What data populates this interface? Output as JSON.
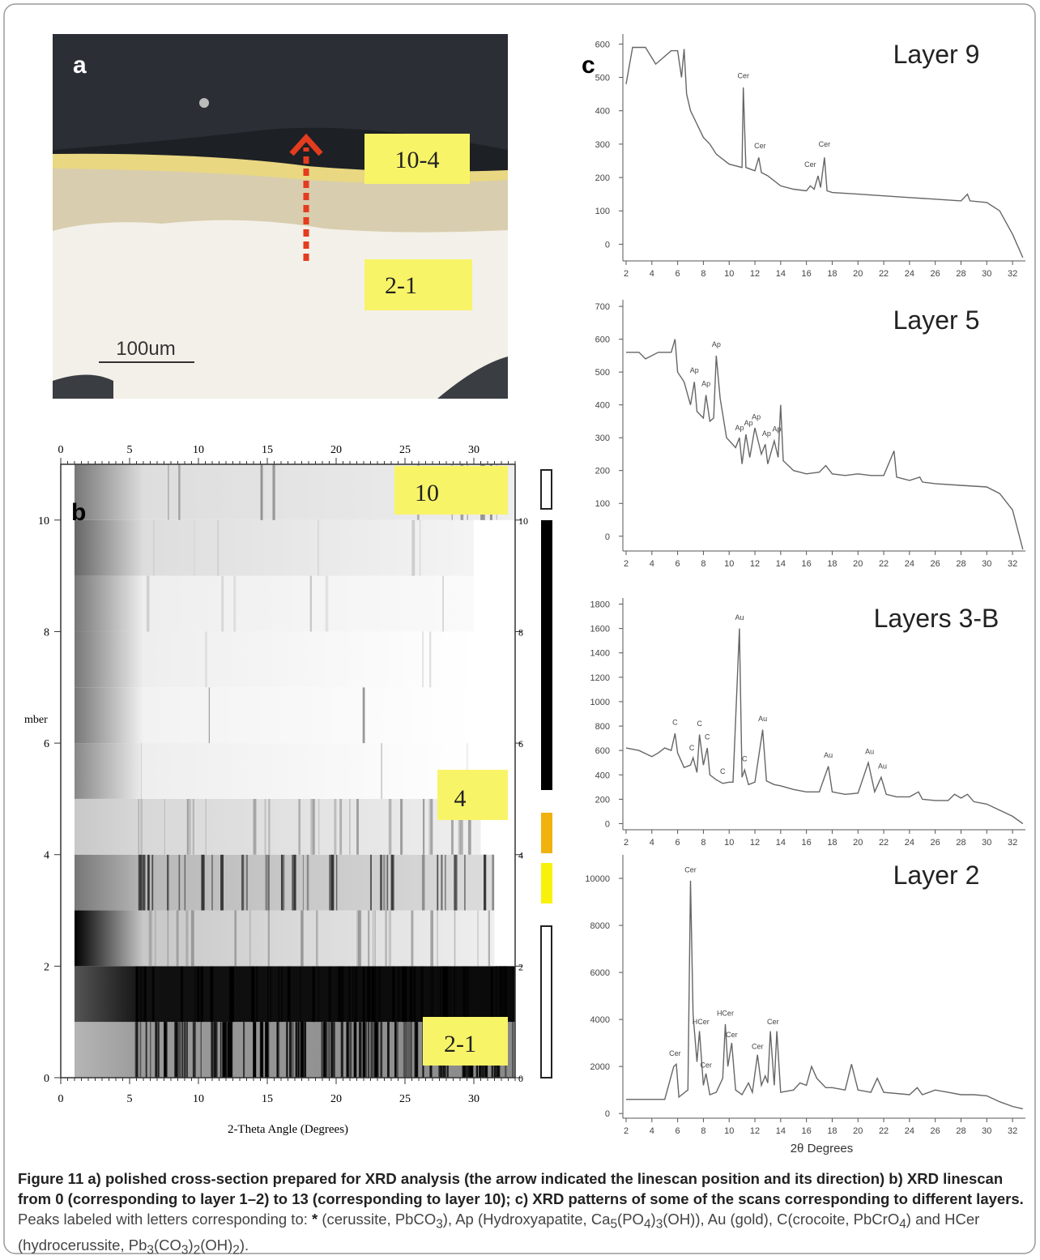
{
  "panel_a": {
    "label": "a",
    "boxes": [
      "10-4",
      "2-1"
    ],
    "scale_bar": "100um"
  },
  "panel_b": {
    "label": "b",
    "xlim": [
      0,
      33
    ],
    "ylim": [
      0,
      11
    ],
    "xticks": [
      0,
      5,
      10,
      15,
      20,
      25,
      30
    ],
    "yticks": [
      0,
      2,
      4,
      6,
      8,
      10
    ],
    "x_label": "2-Theta Angle (Degrees)",
    "y_label": "mber",
    "boxes": [
      "10",
      "4",
      "2-1"
    ]
  },
  "panel_c_label": "c",
  "chart_data": [
    {
      "type": "line",
      "title": "Layer 9",
      "color": "#666666",
      "xlim": [
        2,
        33
      ],
      "ylim": [
        -50,
        630
      ],
      "xticks": [
        2,
        4,
        6,
        8,
        10,
        12,
        14,
        16,
        18,
        20,
        22,
        24,
        26,
        28,
        30,
        32
      ],
      "yticks": [
        0,
        100,
        200,
        300,
        400,
        500,
        600
      ],
      "x": [
        2,
        2.5,
        3.5,
        4.3,
        5.5,
        6,
        6.3,
        6.5,
        6.7,
        7,
        8,
        8.5,
        9,
        10,
        11,
        11.1,
        11.3,
        12,
        12.3,
        12.5,
        13,
        14,
        15,
        16,
        16.3,
        16.6,
        16.9,
        17.1,
        17.4,
        17.6,
        18,
        20,
        22,
        24,
        26,
        28,
        28.5,
        28.7,
        30,
        31,
        32,
        32.8
      ],
      "values": [
        480,
        590,
        590,
        540,
        580,
        580,
        500,
        585,
        450,
        400,
        320,
        300,
        270,
        240,
        230,
        470,
        230,
        220,
        260,
        215,
        205,
        175,
        165,
        160,
        175,
        165,
        205,
        170,
        260,
        160,
        155,
        150,
        145,
        140,
        135,
        130,
        150,
        130,
        125,
        100,
        30,
        -40
      ],
      "annotations": [
        {
          "text": "Cer",
          "x": 11.1,
          "y": 490
        },
        {
          "text": "Cer",
          "x": 12.4,
          "y": 280
        },
        {
          "text": "Cer",
          "x": 16.3,
          "y": 225
        },
        {
          "text": "Cer",
          "x": 17.4,
          "y": 285
        }
      ]
    },
    {
      "type": "line",
      "title": "Layer 5",
      "color": "#666666",
      "xlim": [
        2,
        33
      ],
      "ylim": [
        -45,
        720
      ],
      "xticks": [
        2,
        4,
        6,
        8,
        10,
        12,
        14,
        16,
        18,
        20,
        22,
        24,
        26,
        28,
        30,
        32
      ],
      "yticks": [
        0,
        100,
        200,
        300,
        400,
        500,
        600,
        700
      ],
      "x": [
        2,
        3,
        3.5,
        4.5,
        5.5,
        5.8,
        6,
        6.5,
        7,
        7.3,
        7.5,
        8,
        8.2,
        8.5,
        8.8,
        9,
        9.3,
        9.8,
        10.5,
        10.8,
        11,
        11.3,
        11.6,
        12,
        12.5,
        12.8,
        13,
        13.5,
        13.8,
        14,
        14.2,
        15,
        16,
        17,
        17.5,
        18,
        19,
        20,
        21,
        22,
        22.8,
        23,
        24,
        24.8,
        25,
        26,
        28,
        30,
        31,
        32,
        32.8
      ],
      "values": [
        560,
        560,
        540,
        560,
        560,
        600,
        500,
        470,
        400,
        470,
        380,
        360,
        430,
        350,
        360,
        550,
        420,
        300,
        270,
        300,
        220,
        310,
        240,
        330,
        250,
        280,
        220,
        290,
        240,
        400,
        230,
        200,
        190,
        195,
        215,
        190,
        185,
        190,
        185,
        185,
        260,
        180,
        170,
        180,
        165,
        160,
        155,
        150,
        130,
        80,
        -40
      ],
      "annotations": [
        {
          "text": "Ap",
          "x": 7.3,
          "y": 490
        },
        {
          "text": "Ap",
          "x": 8.2,
          "y": 450
        },
        {
          "text": "Ap",
          "x": 9,
          "y": 570
        },
        {
          "text": "Ap",
          "x": 10.8,
          "y": 315
        },
        {
          "text": "Ap",
          "x": 11.5,
          "y": 330
        },
        {
          "text": "Ap",
          "x": 12.1,
          "y": 348
        },
        {
          "text": "Ap",
          "x": 12.9,
          "y": 298
        },
        {
          "text": "Ap",
          "x": 13.7,
          "y": 312
        }
      ]
    },
    {
      "type": "line",
      "title": "Layers 3-B",
      "color": "#666666",
      "xlim": [
        2,
        33
      ],
      "ylim": [
        -50,
        1850
      ],
      "xticks": [
        2,
        4,
        6,
        8,
        10,
        12,
        14,
        16,
        18,
        20,
        22,
        24,
        26,
        28,
        30,
        32
      ],
      "yticks": [
        0,
        200,
        400,
        600,
        800,
        1000,
        1200,
        1400,
        1600,
        1800
      ],
      "x": [
        2,
        3,
        4,
        4.5,
        5,
        5.5,
        5.8,
        6,
        6.5,
        7,
        7.2,
        7.5,
        7.7,
        8,
        8.3,
        8.5,
        9,
        9.5,
        10,
        10.3,
        10.8,
        11,
        11.2,
        11.5,
        12,
        12.6,
        12.9,
        13.5,
        14,
        15,
        16,
        17,
        17.7,
        18,
        19,
        20,
        20.8,
        21.3,
        21.8,
        22.2,
        23,
        24,
        24.7,
        25,
        26,
        27,
        27.5,
        28,
        28.5,
        29,
        30,
        31,
        32,
        32.8
      ],
      "values": [
        620,
        600,
        550,
        580,
        620,
        600,
        740,
        580,
        460,
        480,
        540,
        420,
        730,
        480,
        620,
        400,
        360,
        330,
        340,
        340,
        1600,
        380,
        440,
        320,
        340,
        770,
        350,
        320,
        310,
        280,
        260,
        260,
        470,
        260,
        240,
        250,
        500,
        260,
        380,
        240,
        220,
        220,
        260,
        200,
        190,
        190,
        240,
        210,
        240,
        180,
        160,
        110,
        60,
        0
      ],
      "annotations": [
        {
          "text": "C",
          "x": 5.8,
          "y": 790
        },
        {
          "text": "C",
          "x": 7.1,
          "y": 580
        },
        {
          "text": "C",
          "x": 7.7,
          "y": 780
        },
        {
          "text": "C",
          "x": 8.3,
          "y": 670
        },
        {
          "text": "C",
          "x": 9.5,
          "y": 390
        },
        {
          "text": "C",
          "x": 11.2,
          "y": 490
        },
        {
          "text": "Au",
          "x": 10.8,
          "y": 1650
        },
        {
          "text": "Au",
          "x": 12.6,
          "y": 820
        },
        {
          "text": "Au",
          "x": 17.7,
          "y": 520
        },
        {
          "text": "Au",
          "x": 20.9,
          "y": 550
        },
        {
          "text": "Au",
          "x": 21.9,
          "y": 430
        }
      ]
    },
    {
      "type": "line",
      "title": "Layer 2",
      "x_label": "2θ Degrees",
      "color": "#666666",
      "xlim": [
        2,
        33
      ],
      "ylim": [
        -200,
        11000
      ],
      "xticks": [
        2,
        4,
        6,
        8,
        10,
        12,
        14,
        16,
        18,
        20,
        22,
        24,
        26,
        28,
        30,
        32
      ],
      "yticks": [
        0,
        2000,
        4000,
        6000,
        8000,
        10000
      ],
      "x": [
        2,
        4,
        5,
        5.7,
        5.9,
        6.1,
        6.8,
        7,
        7.2,
        7.5,
        7.7,
        8,
        8.2,
        8.5,
        9,
        9.5,
        9.7,
        9.9,
        10.2,
        10.5,
        11,
        11.5,
        11.8,
        12.2,
        12.5,
        12.8,
        13,
        13.2,
        13.5,
        13.7,
        14,
        15,
        15.5,
        16,
        16.4,
        16.8,
        17.5,
        18,
        19,
        19.5,
        20,
        21,
        21.5,
        22,
        24,
        24.6,
        25,
        26,
        27,
        28,
        29,
        30,
        31,
        32,
        32.8
      ],
      "values": [
        600,
        600,
        600,
        2000,
        2100,
        700,
        1000,
        9900,
        4200,
        2200,
        3500,
        1200,
        1700,
        800,
        900,
        1500,
        3800,
        2000,
        3000,
        1000,
        800,
        1300,
        900,
        2500,
        1200,
        1600,
        1300,
        3500,
        1200,
        3500,
        900,
        1000,
        1300,
        1200,
        2000,
        1500,
        1100,
        1100,
        1000,
        2100,
        1000,
        900,
        1500,
        900,
        800,
        1100,
        800,
        1000,
        900,
        800,
        800,
        750,
        500,
        300,
        200
      ],
      "annotations": [
        {
          "text": "Cer",
          "x": 7,
          "y": 10150
        },
        {
          "text": "Cer",
          "x": 5.8,
          "y": 2350
        },
        {
          "text": "HCer",
          "x": 7.8,
          "y": 3700
        },
        {
          "text": "Cer",
          "x": 8.2,
          "y": 1850
        },
        {
          "text": "HCer",
          "x": 9.7,
          "y": 4050
        },
        {
          "text": "Cer",
          "x": 10.2,
          "y": 3150
        },
        {
          "text": "Cer",
          "x": 12.2,
          "y": 2650
        },
        {
          "text": "Cer",
          "x": 13.4,
          "y": 3700
        }
      ]
    }
  ],
  "caption": [
    {
      "text": "Figure 11",
      "style": "bold"
    },
    {
      "text": " a) polished cross-section prepared for XRD analysis (the arrow indicated the linescan position and its direction) b) XRD linescan from 0 (corresponding to layer 1–2) to 13 (corresponding to layer 10); c) XRD patterns of some of the scans corresponding to different layers.",
      "style": "bold"
    },
    {
      "text": " Peaks labeled with letters corresponding to: ",
      "style": "normal"
    },
    {
      "text": "*",
      "style": "bold"
    },
    {
      "text": " (cerussite, PbCO",
      "style": "normal"
    },
    {
      "text": "3",
      "style": "sub"
    },
    {
      "text": "), Ap (Hydroxyapatite, Ca",
      "style": "normal"
    },
    {
      "text": "5",
      "style": "sub"
    },
    {
      "text": "(PO",
      "style": "normal"
    },
    {
      "text": "4",
      "style": "sub"
    },
    {
      "text": ")",
      "style": "normal"
    },
    {
      "text": "3",
      "style": "sub"
    },
    {
      "text": "(OH)), Au (gold), C(crocoite, PbCrO",
      "style": "normal"
    },
    {
      "text": "4",
      "style": "sub"
    },
    {
      "text": ") and HCer (hydrocerussite, Pb",
      "style": "normal"
    },
    {
      "text": "3",
      "style": "sub"
    },
    {
      "text": "(CO",
      "style": "normal"
    },
    {
      "text": "3",
      "style": "sub"
    },
    {
      "text": ")",
      "style": "normal"
    },
    {
      "text": "2",
      "style": "sub"
    },
    {
      "text": "(OH)",
      "style": "normal"
    },
    {
      "text": "2",
      "style": "sub"
    },
    {
      "text": ").",
      "style": "normal"
    }
  ]
}
